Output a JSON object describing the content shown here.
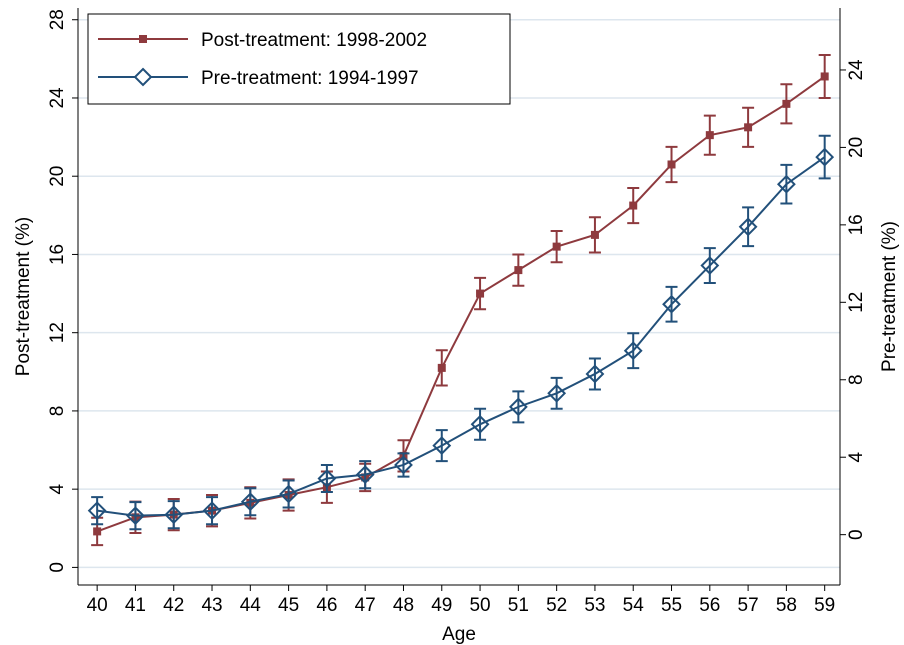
{
  "chart_data": {
    "type": "line",
    "x": [
      40,
      41,
      42,
      43,
      44,
      45,
      46,
      47,
      48,
      49,
      50,
      51,
      52,
      53,
      54,
      55,
      56,
      57,
      58,
      59
    ],
    "xlim": [
      39.5,
      59.4
    ],
    "xticks": [
      40,
      41,
      42,
      43,
      44,
      45,
      46,
      47,
      48,
      49,
      50,
      51,
      52,
      53,
      54,
      55,
      56,
      57,
      58,
      59
    ],
    "xlabel": "Age",
    "ylabel": "Post-treatment (%)",
    "y2label": "Pre-treatment (%)",
    "ylim": [
      -0.9,
      28.6
    ],
    "yticks": [
      0,
      4,
      8,
      12,
      16,
      20,
      24,
      28
    ],
    "y2lim": [
      -2.6,
      27.2
    ],
    "y2ticks": [
      0,
      4,
      8,
      12,
      16,
      20,
      24
    ],
    "grid": true,
    "legend": "top-left",
    "series": [
      {
        "name": "Post-treatment: 1998-2002",
        "color": "#8e3a3e",
        "marker": "square",
        "axis": "y",
        "values": [
          1.84,
          2.56,
          2.7,
          2.9,
          3.3,
          3.7,
          4.1,
          4.6,
          5.7,
          10.2,
          14.0,
          15.2,
          16.4,
          17.0,
          18.5,
          20.6,
          22.1,
          22.5,
          23.7,
          25.1
        ],
        "errors": [
          0.7,
          0.8,
          0.8,
          0.8,
          0.8,
          0.8,
          0.8,
          0.7,
          0.8,
          0.9,
          0.8,
          0.8,
          0.8,
          0.9,
          0.9,
          0.9,
          1.0,
          1.0,
          1.0,
          1.1
        ]
      },
      {
        "name": "Pre-treatment: 1994-1997",
        "color": "#22507a",
        "marker": "diamond",
        "axis": "y2",
        "values": [
          1.24,
          0.98,
          1.03,
          1.24,
          1.7,
          2.1,
          2.9,
          3.1,
          3.6,
          4.6,
          5.7,
          6.6,
          7.3,
          8.3,
          9.5,
          11.9,
          13.9,
          15.9,
          18.1,
          19.5
        ],
        "errors": [
          0.7,
          0.7,
          0.7,
          0.7,
          0.7,
          0.7,
          0.7,
          0.7,
          0.6,
          0.8,
          0.8,
          0.8,
          0.8,
          0.8,
          0.9,
          0.9,
          0.9,
          1.0,
          1.0,
          1.1
        ]
      }
    ]
  }
}
